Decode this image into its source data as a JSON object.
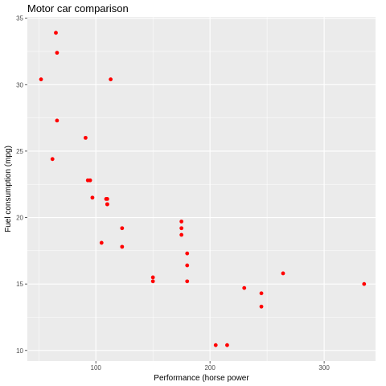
{
  "chart_data": {
    "type": "scatter",
    "title": "Motor car comparison",
    "xlabel": "Performance (horse power",
    "ylabel": "Fuel consumption (mpg)",
    "xlim": [
      40,
      345
    ],
    "ylim": [
      9.2,
      35.1
    ],
    "x_ticks": [
      100,
      200,
      300
    ],
    "y_ticks": [
      10,
      15,
      20,
      25,
      30,
      35
    ],
    "grid": true,
    "panel_background": "#ebebeb",
    "grid_color": "#ffffff",
    "point_color": "#ff0000",
    "series": [
      {
        "x": [
          110,
          110,
          93,
          110,
          175,
          105,
          245,
          62,
          95,
          123,
          123,
          180,
          180,
          180,
          205,
          215,
          230,
          66,
          52,
          65,
          97,
          150,
          150,
          245,
          175,
          66,
          91,
          113,
          264,
          175,
          335,
          109
        ],
        "y": [
          21.0,
          21.0,
          22.8,
          21.4,
          18.7,
          18.1,
          14.3,
          24.4,
          22.8,
          19.2,
          17.8,
          16.4,
          17.3,
          15.2,
          10.4,
          10.4,
          14.7,
          32.4,
          30.4,
          33.9,
          21.5,
          15.5,
          15.2,
          13.3,
          19.2,
          27.3,
          26.0,
          30.4,
          15.8,
          19.7,
          15.0,
          21.4
        ]
      }
    ]
  }
}
